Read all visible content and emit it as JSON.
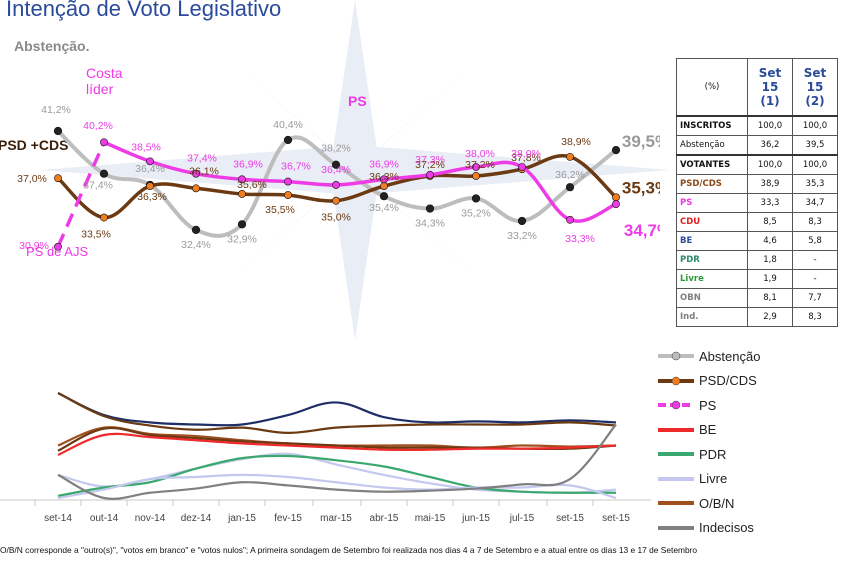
{
  "title": "Intenção de Voto Legislativo",
  "subtitle": "Abstenção.",
  "colors": {
    "abstencao": "#bdbdbd",
    "psd_cds": "#6b3a12",
    "psd_marker": "#f07e20",
    "ps": "#ee3be6",
    "be": "#ee2a2a",
    "pdr": "#3aa86e",
    "livre": "#c4c8ee",
    "obn": "#a0501e",
    "indecisos": "#808080",
    "votantes_line": "#1e2e66"
  },
  "chart_data": [
    {
      "type": "line",
      "x": [
        "set-14",
        "out-14",
        "nov-14",
        "dez-14",
        "jan-15",
        "fev-15",
        "mar-15",
        "abr-15",
        "mai-15",
        "jun-15",
        "jul-15",
        "set-15",
        "set-15"
      ],
      "series": [
        {
          "name": "Abstenção",
          "values": [
            41.2,
            37.4,
            36.4,
            32.4,
            32.9,
            40.4,
            38.2,
            35.4,
            34.3,
            35.2,
            33.2,
            36.2,
            39.5
          ]
        },
        {
          "name": "PSD/CDS",
          "values": [
            37.0,
            33.5,
            36.3,
            36.1,
            35.6,
            35.5,
            35.0,
            36.3,
            37.2,
            37.2,
            37.8,
            38.9,
            35.3
          ]
        },
        {
          "name": "PS",
          "values": [
            30.9,
            40.2,
            38.5,
            37.4,
            36.9,
            36.7,
            36.4,
            36.9,
            37.3,
            38.0,
            38.0,
            33.3,
            34.7
          ]
        }
      ],
      "data_labels": {
        "Abstenção": [
          "41,2%",
          "37,4%",
          "36,4%",
          "32,4%",
          "32,9%",
          "40,4%",
          "38,2%",
          "35,4%",
          "34,3%",
          "35,2%",
          "33,2%",
          "36,2%",
          "39,5%"
        ],
        "PSD/CDS": [
          "37,0%",
          "33,5%",
          "36,3%",
          "36,1%",
          "35,6%",
          "35,5%",
          "35,0%",
          "36,3%",
          "37,2%",
          "37,2%",
          "37,8%",
          "38,9%",
          "35,3%"
        ],
        "PS": [
          "30,9%",
          "40,2%",
          "38,5%",
          "37,4%",
          "36,9%",
          "36,7%",
          "36,4%",
          "36,9%",
          "37,3%",
          "38,0%",
          "38,0%",
          "33,3%",
          "34,7%"
        ]
      },
      "annotations": {
        "psd_cds": "PSD +CDS",
        "costa": "Costa\nlíder",
        "ps": "PS",
        "ps_ajs": "PS de AJS"
      },
      "ylim": [
        29,
        43
      ]
    },
    {
      "type": "line",
      "x": [
        "set-14",
        "out-14",
        "nov-14",
        "dez-14",
        "jan-15",
        "fev-15",
        "mar-15",
        "abr-15",
        "mai-15",
        "jun-15",
        "jul-15",
        "set-15",
        "set-15"
      ],
      "series": [
        {
          "values": [
            100,
            79,
            72,
            70,
            70,
            79,
            91,
            77,
            72,
            73,
            72,
            74,
            72
          ]
        },
        {
          "values": [
            100,
            78,
            69,
            65,
            67,
            62,
            67,
            69,
            70,
            70,
            70,
            72,
            69
          ]
        },
        {
          "values": [
            50,
            67,
            61,
            59,
            55,
            52,
            50,
            50,
            50,
            48,
            50,
            49,
            50
          ]
        },
        {
          "values": [
            45,
            66,
            60,
            57,
            54,
            52,
            50,
            48,
            48,
            48,
            47,
            47,
            50
          ]
        },
        {
          "values": [
            41,
            60,
            58,
            55,
            52,
            50,
            48,
            46,
            46,
            47,
            47,
            48,
            50
          ]
        },
        {
          "values": [
            22,
            11,
            18,
            28,
            37,
            42,
            32,
            22,
            14,
            8,
            6,
            5,
            8
          ]
        },
        {
          "values": [
            2,
            10,
            15,
            28,
            38,
            40,
            36,
            30,
            20,
            10,
            6,
            5,
            5
          ]
        },
        {
          "values": [
            0,
            8,
            18,
            20,
            22,
            20,
            15,
            10,
            8,
            10,
            10,
            12,
            0
          ]
        },
        {
          "values": [
            22,
            0,
            5,
            9,
            15,
            12,
            8,
            6,
            7,
            9,
            13,
            18,
            70
          ]
        }
      ],
      "ylim": [
        0,
        100
      ]
    }
  ],
  "legend": [
    {
      "name": "Abstenção",
      "color": "#bdbdbd",
      "marker": true
    },
    {
      "name": "PSD/CDS",
      "color": "#6b3a12",
      "marker": true,
      "marker_color": "#f07e20"
    },
    {
      "name": "PS",
      "color": "#ee3be6",
      "marker": true,
      "dashed": true
    },
    {
      "name": "BE",
      "color": "#ee2a2a",
      "marker": false
    },
    {
      "name": "PDR",
      "color": "#3aa86e",
      "marker": false
    },
    {
      "name": "Livre",
      "color": "#c4c8ee",
      "marker": false
    },
    {
      "name": "O/B/N",
      "color": "#a0501e",
      "marker": false
    },
    {
      "name": "Indecisos",
      "color": "#808080",
      "marker": false
    }
  ],
  "table": {
    "header": {
      "pct": "(%)",
      "c1": "Set\n15\n(1)",
      "c2": "Set\n15\n(2)"
    },
    "rows": [
      {
        "label": "INSCRITOS",
        "v1": "100,0",
        "v2": "100,0",
        "color": "#111111",
        "thick": true
      },
      {
        "label": "Abstenção",
        "v1": "36,2",
        "v2": "39,5",
        "color": "#111111",
        "normal": true
      },
      {
        "label": "VOTANTES",
        "v1": "100,0",
        "v2": "100,0",
        "color": "#111111",
        "thick": true
      },
      {
        "label": "PSD/CDS",
        "v1": "38,9",
        "v2": "35,3",
        "color": "#8a4a1a"
      },
      {
        "label": "PS",
        "v1": "33,3",
        "v2": "34,7",
        "color": "#e43be0"
      },
      {
        "label": "CDU",
        "v1": "8,5",
        "v2": "8,3",
        "color": "#e02020"
      },
      {
        "label": "BE",
        "v1": "4,6",
        "v2": "5,8",
        "color": "#2a4a9a"
      },
      {
        "label": "PDR",
        "v1": "1,8",
        "v2": "-",
        "color": "#2a8a6a"
      },
      {
        "label": "Livre",
        "v1": "1,9",
        "v2": "-",
        "color": "#2a9a3a"
      },
      {
        "label": "OBN",
        "v1": "8,1",
        "v2": "7,7",
        "color": "#808080"
      },
      {
        "label": "Ind.",
        "v1": "2,9",
        "v2": "8,3",
        "color": "#808080"
      }
    ]
  },
  "footnote": "O/B/N corresponde a \"outro(s)\", \"votos em branco\" e \"votos nulos\"; A primeira sondagem de Setembro foi realizada nos dias  4 a 7 de Setembro e a atual entre os dias 13 e 17 de Setembro"
}
